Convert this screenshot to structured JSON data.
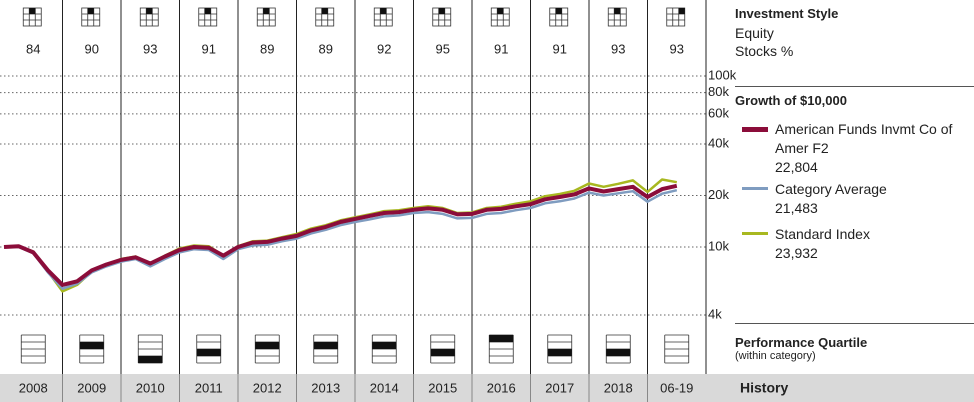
{
  "chart_data": {
    "type": "line",
    "title": "Growth of $10,000",
    "categories": [
      "2008",
      "2009",
      "2010",
      "2011",
      "2012",
      "2013",
      "2014",
      "2015",
      "2016",
      "2017",
      "2018",
      "06-19"
    ],
    "x": [
      2008,
      2008.25,
      2008.5,
      2008.75,
      2009,
      2009.25,
      2009.5,
      2009.75,
      2010,
      2010.25,
      2010.5,
      2010.75,
      2011,
      2011.25,
      2011.5,
      2011.75,
      2012,
      2012.25,
      2012.5,
      2012.75,
      2013,
      2013.25,
      2013.5,
      2013.75,
      2014,
      2014.25,
      2014.5,
      2014.75,
      2015,
      2015.25,
      2015.5,
      2015.75,
      2016,
      2016.25,
      2016.5,
      2016.75,
      2017,
      2017.25,
      2017.5,
      2017.75,
      2018,
      2018.25,
      2018.5,
      2018.75,
      2019,
      2019.25,
      2019.5
    ],
    "xlim": [
      2008,
      2020
    ],
    "ylim": [
      4000,
      100000
    ],
    "log_scale": true,
    "grid": true,
    "yticks": [
      {
        "value": 4000,
        "label": "4k"
      },
      {
        "value": 10000,
        "label": "10k"
      },
      {
        "value": 20000,
        "label": "20k"
      },
      {
        "value": 40000,
        "label": "40k"
      },
      {
        "value": 60000,
        "label": "60k"
      },
      {
        "value": 80000,
        "label": "80k"
      },
      {
        "value": 100000,
        "label": "100k"
      }
    ],
    "series": [
      {
        "name": "American Funds Invmt Co of Amer F2",
        "color": "#8b0d3a",
        "last_label": "22,804",
        "values": [
          10000,
          10100,
          9300,
          7300,
          6000,
          6300,
          7300,
          7900,
          8400,
          8700,
          8000,
          8800,
          9600,
          10000,
          9900,
          8900,
          10000,
          10600,
          10700,
          11200,
          11600,
          12500,
          13100,
          14000,
          14600,
          15200,
          15800,
          16000,
          16500,
          16800,
          16500,
          15500,
          15600,
          16500,
          16700,
          17300,
          17800,
          19000,
          19600,
          20300,
          22000,
          21100,
          21800,
          22500,
          19600,
          21800,
          22804
        ]
      },
      {
        "name": "Category Average",
        "color": "#7f9cc0",
        "last_label": "21,483",
        "values": [
          10000,
          10000,
          9200,
          7100,
          5700,
          6100,
          7100,
          7700,
          8200,
          8500,
          7700,
          8500,
          9300,
          9700,
          9600,
          8500,
          9700,
          10200,
          10300,
          10800,
          11200,
          12000,
          12600,
          13400,
          14000,
          14500,
          15100,
          15300,
          15800,
          16000,
          15600,
          14700,
          14800,
          15600,
          15800,
          16400,
          16900,
          18000,
          18500,
          19200,
          20800,
          20000,
          20600,
          21200,
          18400,
          20500,
          21483
        ]
      },
      {
        "name": "Standard Index",
        "color": "#a8b820",
        "last_label": "23,932",
        "values": [
          10000,
          10100,
          9400,
          7200,
          5500,
          6000,
          7200,
          7900,
          8500,
          8800,
          8000,
          8900,
          9800,
          10200,
          10100,
          8900,
          10100,
          10800,
          10900,
          11400,
          11900,
          12800,
          13400,
          14300,
          14900,
          15500,
          16200,
          16400,
          16900,
          17300,
          16900,
          15800,
          15900,
          16900,
          17200,
          17900,
          18500,
          19800,
          20400,
          21300,
          23500,
          22500,
          23400,
          24500,
          21000,
          24800,
          23932
        ]
      }
    ]
  },
  "investment_style": {
    "title": "Investment Style",
    "asset": "Equity",
    "measure": "Stocks %",
    "values": [
      84,
      90,
      93,
      91,
      89,
      89,
      92,
      95,
      91,
      91,
      93,
      93
    ],
    "style_box": [
      1,
      1,
      1,
      1,
      1,
      1,
      1,
      1,
      1,
      1,
      1,
      2
    ]
  },
  "performance_quartile": {
    "title": "Performance Quartile",
    "subtitle": "(within category)",
    "values": [
      null,
      2,
      4,
      3,
      2,
      2,
      2,
      3,
      1,
      3,
      3,
      null
    ]
  },
  "history": {
    "title": "History"
  }
}
